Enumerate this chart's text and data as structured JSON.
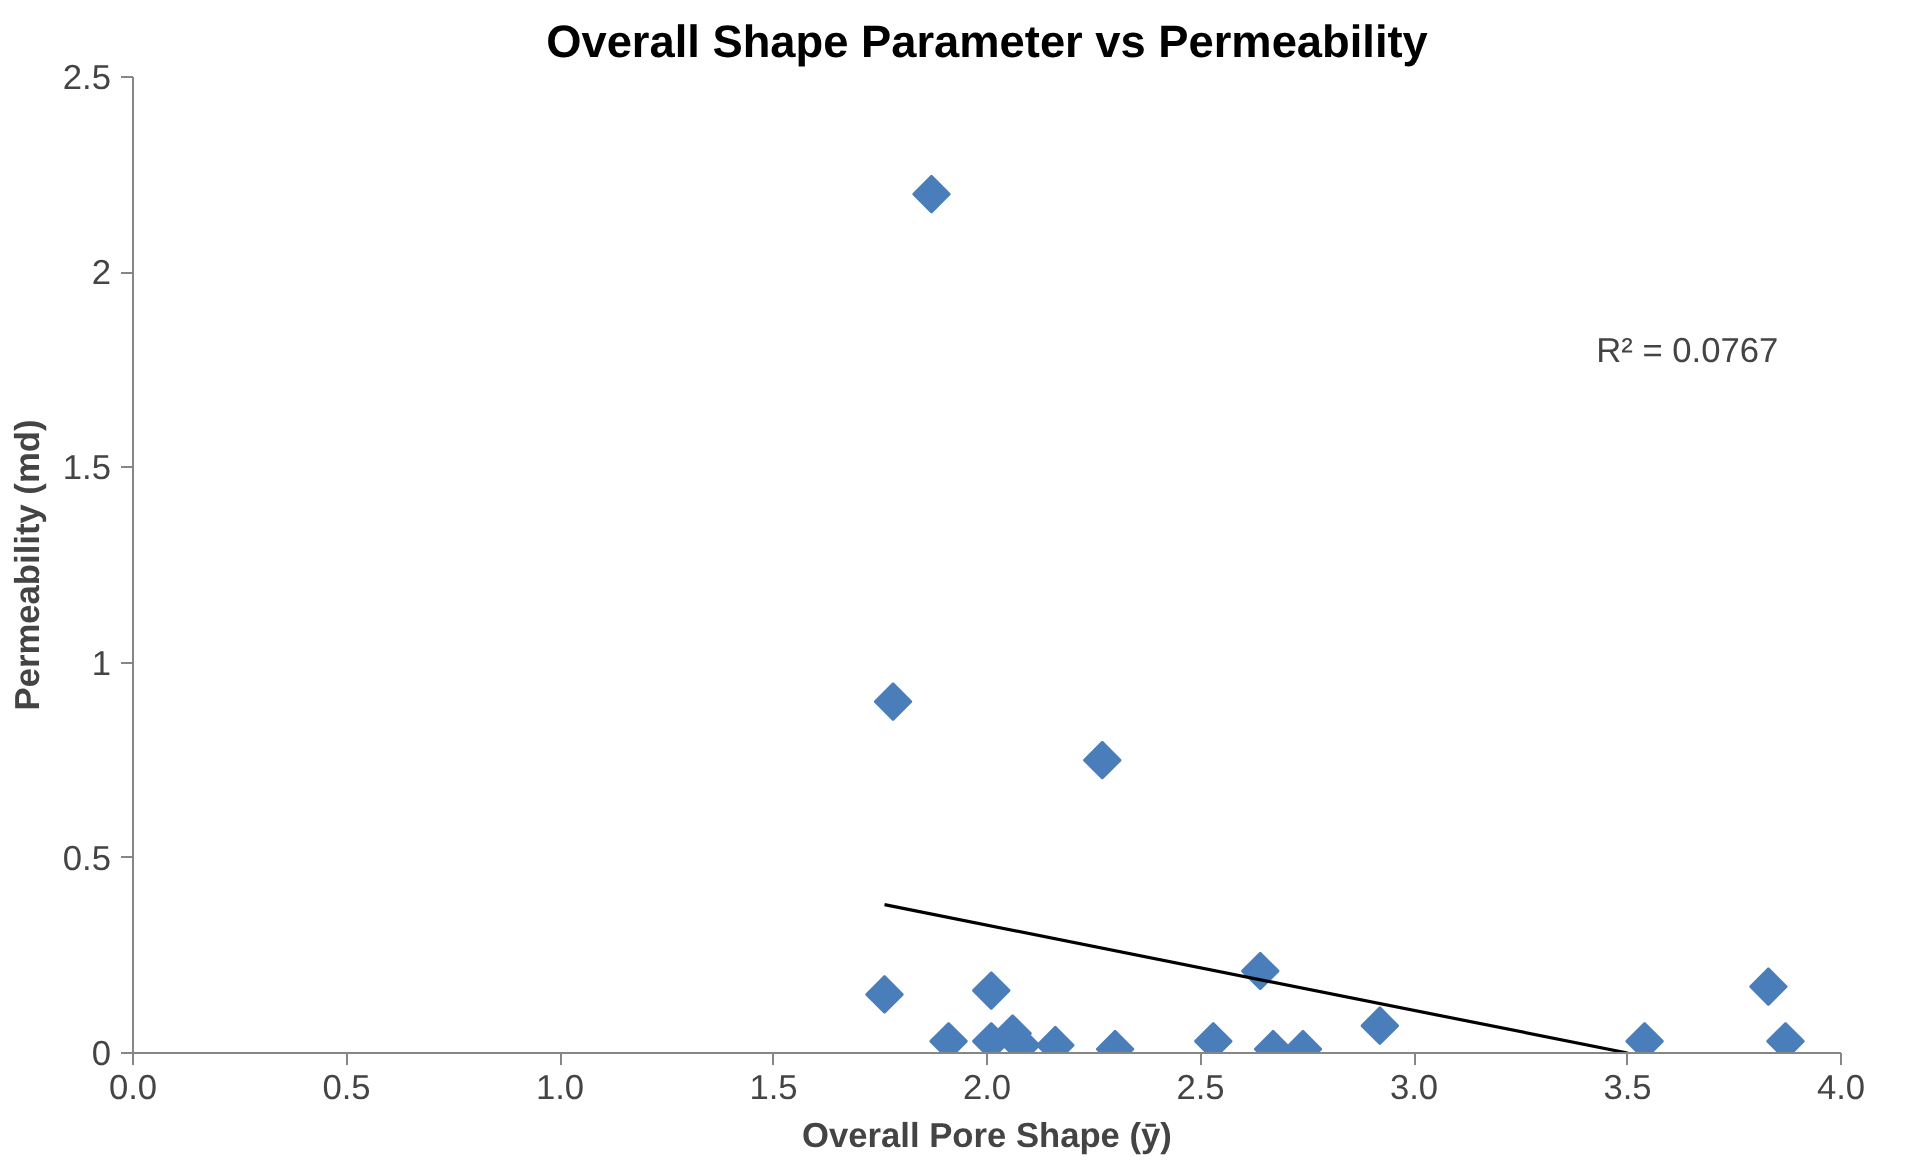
{
  "chart_data": {
    "type": "scatter",
    "title": "Overall Shape Parameter vs Permeability",
    "xlabel": "Overall Pore Shape (ȳ)",
    "ylabel": "Permeability (md)",
    "xlim": [
      0,
      4
    ],
    "xticks": [
      {
        "value": 0,
        "label": "0.0"
      },
      {
        "value": 0.5,
        "label": "0.5"
      },
      {
        "value": 1,
        "label": "1.0"
      },
      {
        "value": 1.5,
        "label": "1.5"
      },
      {
        "value": 2,
        "label": "2.0"
      },
      {
        "value": 2.5,
        "label": "2.5"
      },
      {
        "value": 3,
        "label": "3.0"
      },
      {
        "value": 3.5,
        "label": "3.5"
      },
      {
        "value": 4,
        "label": "4.0"
      }
    ],
    "ylim": [
      0,
      2.5
    ],
    "yticks": [
      0,
      0.5,
      1,
      1.5,
      2,
      2.5
    ],
    "grid": false,
    "series": [
      {
        "color": "#4a7ebb",
        "marker": "diamond",
        "x": [
          1.76,
          1.87,
          1.78,
          2.27,
          1.91,
          2.01,
          2.01,
          2.06,
          2.08,
          2.16,
          2.3,
          2.53,
          2.64,
          2.67,
          2.74,
          2.92,
          3.54,
          3.83,
          3.87
        ],
        "values": [
          0.15,
          2.2,
          0.9,
          0.75,
          0.03,
          0.16,
          0.03,
          0.05,
          0.02,
          0.02,
          0.01,
          0.03,
          0.21,
          0.01,
          0.01,
          0.07,
          0.03,
          0.17,
          0.03
        ]
      },
      {
        "type": "line",
        "color": "#000000",
        "x": [
          1.76,
          3.5
        ],
        "values": [
          0.38,
          0.0
        ],
        "line_style": "solid"
      }
    ],
    "annotations": [
      "R² = 0.0767"
    ]
  }
}
